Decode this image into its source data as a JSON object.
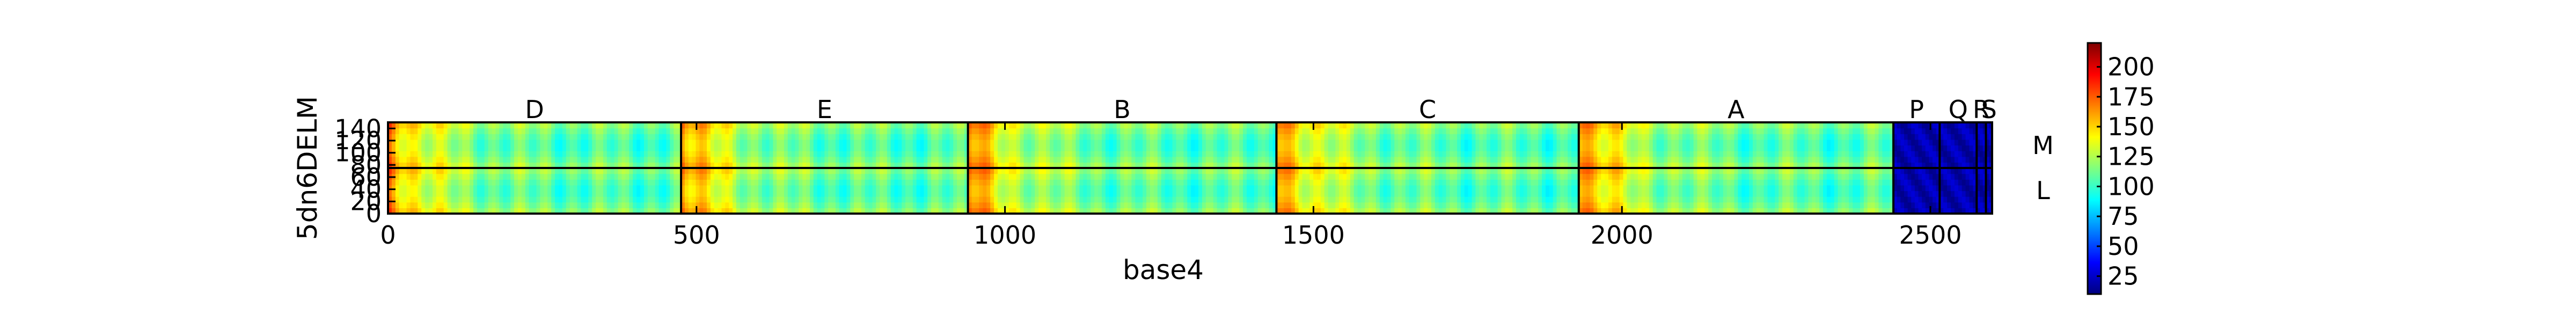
{
  "chart_data": {
    "type": "heatmap",
    "title": "",
    "xlabel": "base4",
    "ylabel": "5dn6DELM",
    "xlim": [
      0,
      2600
    ],
    "ylim": [
      0,
      150
    ],
    "xticks": [
      0,
      500,
      1000,
      1500,
      2000,
      2500
    ],
    "yticks": [
      0,
      20,
      40,
      60,
      80,
      100,
      120,
      140
    ],
    "segments": [
      {
        "label": "D",
        "start": 0,
        "end": 475
      },
      {
        "label": "E",
        "start": 475,
        "end": 940
      },
      {
        "label": "B",
        "start": 940,
        "end": 1440
      },
      {
        "label": "C",
        "start": 1440,
        "end": 1930
      },
      {
        "label": "A",
        "start": 1930,
        "end": 2440
      },
      {
        "label": "P",
        "start": 2440,
        "end": 2515
      },
      {
        "label": "Q",
        "start": 2515,
        "end": 2575
      },
      {
        "label": "R",
        "start": 2575,
        "end": 2590
      },
      {
        "label": "S",
        "start": 2590,
        "end": 2600
      }
    ],
    "row_split": 75,
    "row_labels": [
      {
        "label": "M",
        "center": 112
      },
      {
        "label": "L",
        "center": 38
      }
    ],
    "colorbar": {
      "min": 10,
      "max": 220,
      "ticks": [
        25,
        50,
        75,
        100,
        125,
        150,
        175,
        200
      ],
      "colormap": "jet"
    },
    "intensity_profile": {
      "segment_start_value": 210,
      "segment_floor_value": 95,
      "low_segments_value": 20,
      "row_edge_value": 150,
      "row_center_value": 105
    }
  }
}
